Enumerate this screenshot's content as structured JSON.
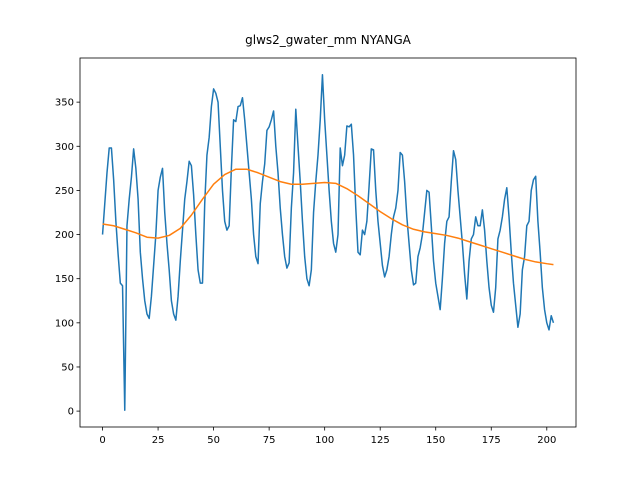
{
  "chart_data": {
    "type": "line",
    "title": "glws2_gwater_mm NYANGA",
    "xlim": [
      -10.15,
      213.15
    ],
    "xticks": [
      0,
      25,
      50,
      75,
      100,
      125,
      150,
      175,
      200
    ],
    "ylim": [
      -18,
      400
    ],
    "yticks": [
      0,
      50,
      100,
      150,
      200,
      250,
      300,
      350
    ],
    "series": [
      {
        "color": "#1f77b4",
        "values": [
          200,
          235,
          270,
          298,
          298,
          262,
          215,
          178,
          145,
          142,
          1,
          210,
          240,
          265,
          297,
          275,
          240,
          180,
          150,
          125,
          110,
          105,
          130,
          165,
          200,
          250,
          265,
          275,
          225,
          190,
          160,
          125,
          110,
          103,
          130,
          170,
          205,
          240,
          260,
          283,
          278,
          245,
          200,
          160,
          145,
          145,
          235,
          290,
          310,
          345,
          365,
          360,
          350,
          300,
          250,
          215,
          205,
          210,
          275,
          330,
          328,
          345,
          346,
          355,
          330,
          300,
          270,
          240,
          200,
          175,
          167,
          235,
          260,
          280,
          318,
          322,
          330,
          340,
          300,
          270,
          230,
          200,
          175,
          162,
          168,
          230,
          270,
          342,
          300,
          260,
          215,
          175,
          150,
          142,
          160,
          225,
          260,
          290,
          330,
          381,
          330,
          290,
          250,
          215,
          190,
          180,
          200,
          298,
          278,
          290,
          323,
          322,
          325,
          290,
          230,
          180,
          177,
          205,
          200,
          215,
          255,
          297,
          296,
          250,
          215,
          190,
          165,
          152,
          160,
          175,
          200,
          220,
          230,
          250,
          293,
          290,
          260,
          220,
          190,
          160,
          143,
          145,
          175,
          185,
          200,
          225,
          250,
          248,
          210,
          170,
          145,
          130,
          115,
          150,
          190,
          215,
          220,
          260,
          295,
          285,
          250,
          220,
          190,
          155,
          127,
          170,
          195,
          200,
          220,
          210,
          210,
          228,
          205,
          170,
          140,
          120,
          112,
          140,
          195,
          205,
          220,
          240,
          253,
          220,
          180,
          145,
          120,
          95,
          110,
          160,
          175,
          210,
          215,
          250,
          262,
          266,
          215,
          180,
          140,
          115,
          100,
          92,
          108,
          100
        ]
      },
      {
        "color": "#ff7f0e",
        "x": [
          0,
          5,
          10,
          15,
          20,
          25,
          30,
          35,
          40,
          45,
          50,
          55,
          60,
          65,
          70,
          75,
          80,
          85,
          90,
          95,
          100,
          105,
          110,
          115,
          120,
          125,
          130,
          135,
          140,
          145,
          150,
          155,
          160,
          165,
          170,
          175,
          180,
          185,
          190,
          195,
          200,
          203
        ],
        "values": [
          212,
          210,
          206,
          202,
          197,
          196,
          199,
          207,
          222,
          240,
          257,
          268,
          274,
          274,
          270,
          265,
          260,
          257,
          257,
          258,
          259,
          258,
          252,
          244,
          235,
          226,
          218,
          211,
          206,
          203,
          201,
          199,
          196,
          192,
          188,
          184,
          180,
          176,
          172,
          169,
          167,
          166
        ]
      }
    ]
  }
}
